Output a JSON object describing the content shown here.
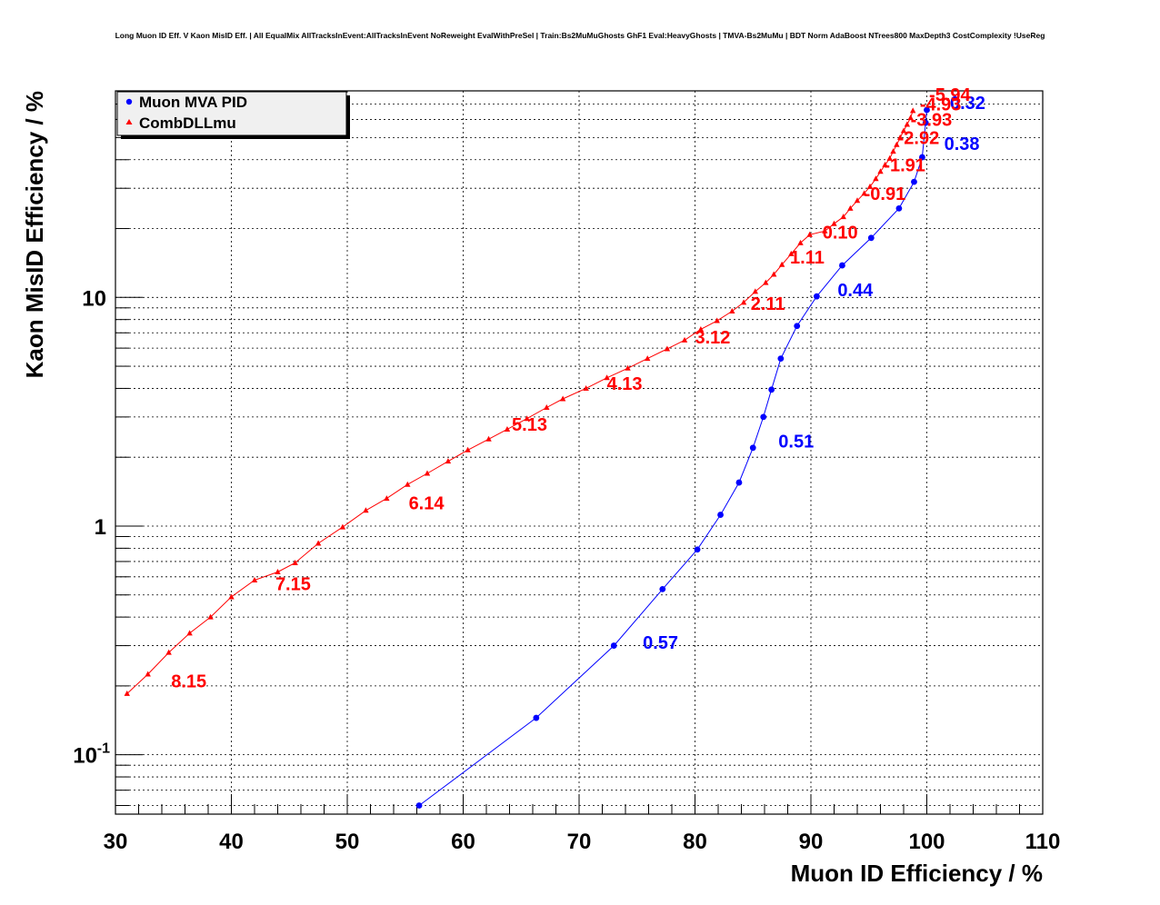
{
  "chart_data": {
    "type": "scatter",
    "title": "Long Muon ID Eff. V Kaon MisID Eff. | All EqualMix AllTracksInEvent:AllTracksInEvent NoReweight EvalWithPreSel | Train:Bs2MuMuGhosts GhF1 Eval:HeavyGhosts | TMVA-Bs2MuMu | BDT Norm AdaBoost NTrees800 MaxDepth3 CostComplexity !UseReg",
    "xlabel": "Muon ID Efficiency / %",
    "ylabel": "Kaon MisID Efficiency / %",
    "xlim": [
      30,
      110
    ],
    "ylim": [
      0.055,
      80
    ],
    "yscale": "log",
    "grid": true,
    "legend_position": "top-left",
    "x_ticks": [
      "30",
      "40",
      "50",
      "60",
      "70",
      "80",
      "90",
      "100",
      "110"
    ],
    "y_ticks": [
      {
        "value": 10,
        "base": "10",
        "exp": ""
      },
      {
        "value": 1,
        "base": "1",
        "exp": ""
      },
      {
        "value": 0.1,
        "base": "10",
        "exp": "-1"
      }
    ],
    "series": [
      {
        "name": "Muon MVA PID",
        "color": "#0000ff",
        "marker": "circle",
        "points": [
          [
            56.2,
            0.06
          ],
          [
            66.3,
            0.145
          ],
          [
            73.0,
            0.3
          ],
          [
            77.2,
            0.53
          ],
          [
            80.2,
            0.79
          ],
          [
            82.2,
            1.12
          ],
          [
            83.8,
            1.55
          ],
          [
            85.0,
            2.2
          ],
          [
            85.9,
            3.0
          ],
          [
            86.6,
            3.95
          ],
          [
            87.4,
            5.4
          ],
          [
            88.8,
            7.5
          ],
          [
            90.5,
            10.1
          ],
          [
            92.7,
            13.8
          ],
          [
            95.2,
            18.2
          ],
          [
            97.6,
            24.5
          ],
          [
            98.9,
            32.0
          ],
          [
            99.6,
            41.0
          ],
          [
            99.9,
            58.0
          ],
          [
            100.0,
            66.0
          ]
        ],
        "labels": [
          {
            "text": "0.57",
            "x": 75.5,
            "y": 0.31
          },
          {
            "text": "0.51",
            "x": 87.2,
            "y": 2.35
          },
          {
            "text": "0.44",
            "x": 92.3,
            "y": 10.8
          },
          {
            "text": "0.38",
            "x": 101.5,
            "y": 47.0
          },
          {
            "text": "0.32",
            "x": 102.0,
            "y": 71.0
          }
        ]
      },
      {
        "name": "CombDLLmu",
        "color": "#ff0000",
        "marker": "triangle",
        "points": [
          [
            31.0,
            0.185
          ],
          [
            32.8,
            0.225
          ],
          [
            34.6,
            0.28
          ],
          [
            36.4,
            0.34
          ],
          [
            38.2,
            0.4
          ],
          [
            40.0,
            0.49
          ],
          [
            42.0,
            0.58
          ],
          [
            44.0,
            0.63
          ],
          [
            45.5,
            0.69
          ],
          [
            47.5,
            0.84
          ],
          [
            49.6,
            0.99
          ],
          [
            51.6,
            1.17
          ],
          [
            53.4,
            1.32
          ],
          [
            55.2,
            1.52
          ],
          [
            56.9,
            1.7
          ],
          [
            58.7,
            1.92
          ],
          [
            60.4,
            2.15
          ],
          [
            62.2,
            2.4
          ],
          [
            63.8,
            2.65
          ],
          [
            65.5,
            2.95
          ],
          [
            67.2,
            3.3
          ],
          [
            68.6,
            3.6
          ],
          [
            70.6,
            4.0
          ],
          [
            72.4,
            4.45
          ],
          [
            74.2,
            4.9
          ],
          [
            75.9,
            5.4
          ],
          [
            77.6,
            5.95
          ],
          [
            79.1,
            6.5
          ],
          [
            80.5,
            7.25
          ],
          [
            81.9,
            7.9
          ],
          [
            83.2,
            8.7
          ],
          [
            84.2,
            9.5
          ],
          [
            85.2,
            10.6
          ],
          [
            86.1,
            11.6
          ],
          [
            86.8,
            12.6
          ],
          [
            87.5,
            13.9
          ],
          [
            88.3,
            15.5
          ],
          [
            89.1,
            17.3
          ],
          [
            89.9,
            18.8
          ],
          [
            91.2,
            19.5
          ],
          [
            92.0,
            21.0
          ],
          [
            92.8,
            22.5
          ],
          [
            93.4,
            24.5
          ],
          [
            94.0,
            26.5
          ],
          [
            94.6,
            28.5
          ],
          [
            95.1,
            30.5
          ],
          [
            95.6,
            33.0
          ],
          [
            96.0,
            35.5
          ],
          [
            96.4,
            38.0
          ],
          [
            96.8,
            40.5
          ],
          [
            97.1,
            43.5
          ],
          [
            97.4,
            46.5
          ],
          [
            97.7,
            50.0
          ],
          [
            98.0,
            53.5
          ],
          [
            98.3,
            57.0
          ],
          [
            98.6,
            61.0
          ],
          [
            98.8,
            65.5
          ]
        ],
        "labels": [
          {
            "text": "8.15",
            "x": 34.8,
            "y": 0.21
          },
          {
            "text": "7.15",
            "x": 43.8,
            "y": 0.56
          },
          {
            "text": "6.14",
            "x": 55.3,
            "y": 1.26
          },
          {
            "text": "5.13",
            "x": 64.2,
            "y": 2.78
          },
          {
            "text": "4.13",
            "x": 72.4,
            "y": 4.2
          },
          {
            "text": "3.12",
            "x": 80.0,
            "y": 6.7
          },
          {
            "text": "2.11",
            "x": 84.8,
            "y": 9.4
          },
          {
            "text": "1.11",
            "x": 88.2,
            "y": 15.0
          },
          {
            "text": "0.10",
            "x": 91.0,
            "y": 19.3
          },
          {
            "text": "-0.91",
            "x": 94.6,
            "y": 28.5
          },
          {
            "text": "-1.91",
            "x": 96.3,
            "y": 38.0
          },
          {
            "text": "-2.92",
            "x": 97.5,
            "y": 50.0
          },
          {
            "text": "-3.93",
            "x": 98.6,
            "y": 60.0
          },
          {
            "text": "-4.93",
            "x": 99.4,
            "y": 70.0
          },
          {
            "text": "-5.94",
            "x": 100.2,
            "y": 77.0
          }
        ]
      }
    ]
  }
}
